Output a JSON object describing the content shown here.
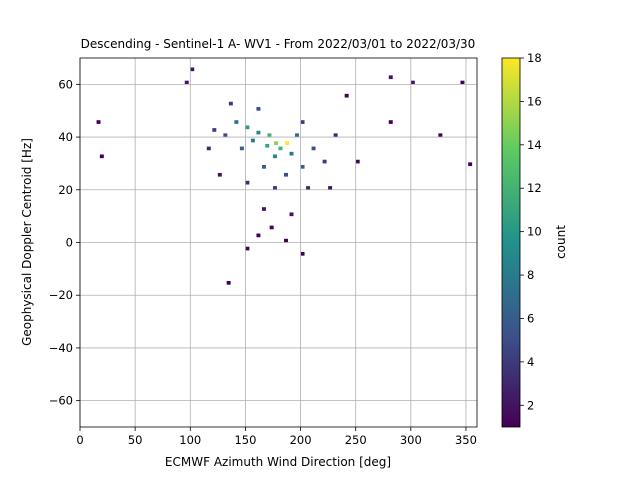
{
  "chart_data": {
    "type": "heatmap",
    "title": "Descending - Sentinel-1 A- WV1 - From 2022/03/01 to 2022/03/30",
    "xlabel": "ECMWF Azimuth Wind Direction [deg]",
    "ylabel": "Geophysical Doppler Centroid [Hz]",
    "xlim": [
      0,
      360
    ],
    "ylim": [
      -70,
      70
    ],
    "xticks": [
      0,
      50,
      100,
      150,
      200,
      250,
      300,
      350
    ],
    "yticks": [
      -60,
      -40,
      -20,
      0,
      20,
      40,
      60
    ],
    "grid": true,
    "colormap": "viridis",
    "colorbar": {
      "label": "count",
      "min": 1,
      "max": 18,
      "ticks": [
        2,
        4,
        6,
        8,
        10,
        12,
        14,
        16,
        18
      ]
    },
    "bin_width": {
      "x": 3.6,
      "y": 1.4
    },
    "bins": [
      [
        176,
        37,
        15
      ],
      [
        186,
        37,
        18
      ],
      [
        180,
        35,
        12
      ],
      [
        170,
        40,
        12
      ],
      [
        168,
        36,
        11
      ],
      [
        150,
        43,
        10
      ],
      [
        160,
        41,
        9
      ],
      [
        175,
        32,
        9
      ],
      [
        190,
        33,
        8
      ],
      [
        155,
        38,
        8
      ],
      [
        195,
        40,
        7
      ],
      [
        140,
        45,
        7
      ],
      [
        200,
        28,
        6
      ],
      [
        165,
        28,
        6
      ],
      [
        145,
        35,
        6
      ],
      [
        210,
        35,
        5
      ],
      [
        130,
        40,
        5
      ],
      [
        185,
        25,
        5
      ],
      [
        160,
        50,
        5
      ],
      [
        135,
        52,
        4
      ],
      [
        220,
        30,
        4
      ],
      [
        120,
        42,
        4
      ],
      [
        175,
        20,
        4
      ],
      [
        200,
        45,
        4
      ],
      [
        205,
        20,
        3
      ],
      [
        150,
        22,
        3
      ],
      [
        115,
        35,
        3
      ],
      [
        230,
        40,
        3
      ],
      [
        95,
        60,
        2
      ],
      [
        100,
        65,
        2
      ],
      [
        280,
        62,
        2
      ],
      [
        300,
        60,
        2
      ],
      [
        125,
        25,
        2
      ],
      [
        225,
        20,
        2
      ],
      [
        165,
        12,
        2
      ],
      [
        190,
        10,
        2
      ],
      [
        172,
        5,
        1
      ],
      [
        160,
        2,
        1
      ],
      [
        185,
        0,
        1
      ],
      [
        133,
        -16,
        1
      ],
      [
        352,
        29,
        1
      ],
      [
        18,
        32,
        1
      ],
      [
        15,
        45,
        1
      ],
      [
        280,
        45,
        1
      ],
      [
        250,
        30,
        1
      ],
      [
        200,
        -5,
        1
      ],
      [
        150,
        -3,
        1
      ],
      [
        240,
        55,
        1
      ],
      [
        325,
        40,
        1
      ],
      [
        345,
        60,
        1
      ]
    ]
  }
}
